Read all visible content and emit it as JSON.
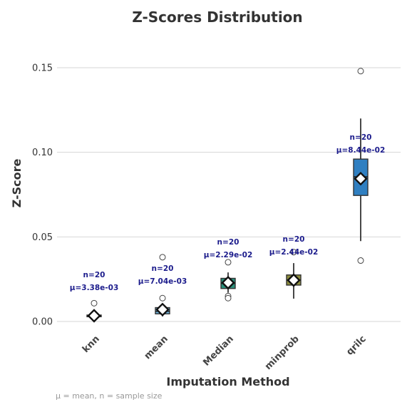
{
  "chart_data": {
    "type": "box",
    "title": "Z-Scores Distribution",
    "xlabel": "Imputation Method",
    "ylabel": "Z-Score",
    "ylim": [
      -0.012,
      0.165
    ],
    "yticks": [
      0.0,
      0.05,
      0.1,
      0.15
    ],
    "ytick_labels": [
      "0.00",
      "0.05",
      "0.10",
      "0.15"
    ],
    "grid": true,
    "categories": [
      "knn",
      "mean",
      "Median",
      "minprob",
      "qrilc"
    ],
    "colors": [
      "#e8913a",
      "#6aafd6",
      "#2a8f7a",
      "#8c8c3c",
      "#2f7fc1"
    ],
    "series": [
      {
        "category": "knn",
        "q1": 0.0028,
        "median": 0.0033,
        "q3": 0.0038,
        "whisker_low": 0.0022,
        "whisker_high": 0.0045,
        "outliers": [
          0.0108
        ],
        "mean": 0.00338,
        "n_label": "n=20",
        "mean_label": "μ=3.38e-03"
      },
      {
        "category": "mean",
        "q1": 0.0045,
        "median": 0.006,
        "q3": 0.0082,
        "whisker_low": 0.003,
        "whisker_high": 0.009,
        "outliers": [
          0.038,
          0.0138
        ],
        "mean": 0.00704,
        "n_label": "n=20",
        "mean_label": "μ=7.04e-03"
      },
      {
        "category": "Median",
        "q1": 0.0195,
        "median": 0.0225,
        "q3": 0.0255,
        "whisker_low": 0.017,
        "whisker_high": 0.029,
        "outliers": [
          0.035,
          0.015,
          0.0138
        ],
        "mean": 0.0229,
        "n_label": "n=20",
        "mean_label": "μ=2.29e-02"
      },
      {
        "category": "minprob",
        "q1": 0.0215,
        "median": 0.0245,
        "q3": 0.0275,
        "whisker_low": 0.0135,
        "whisker_high": 0.0345,
        "outliers": [
          0.041
        ],
        "mean": 0.0244,
        "n_label": "n=20",
        "mean_label": "μ=2.44e-02"
      },
      {
        "category": "qrilc",
        "q1": 0.0745,
        "median": 0.0855,
        "q3": 0.096,
        "whisker_low": 0.0475,
        "whisker_high": 0.12,
        "outliers": [
          0.148,
          0.036
        ],
        "mean": 0.0844,
        "n_label": "n=20",
        "mean_label": "μ=8.44e-02"
      }
    ],
    "footnote": "μ = mean, n = sample size"
  }
}
